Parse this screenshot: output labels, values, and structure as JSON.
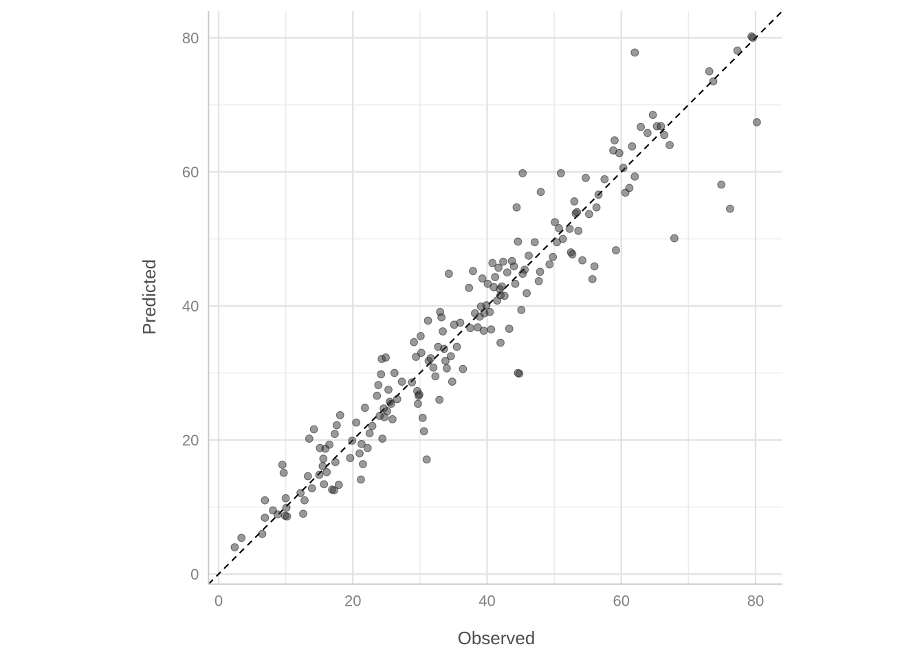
{
  "chart_data": {
    "type": "scatter",
    "title": "",
    "xlabel": "Observed",
    "ylabel": "Predicted",
    "xlim": [
      -1.5,
      84
    ],
    "ylim": [
      -1.5,
      84
    ],
    "x_ticks": [
      0,
      20,
      40,
      60,
      80
    ],
    "y_ticks": [
      0,
      20,
      40,
      60,
      80
    ],
    "x_tick_labels": [
      "0",
      "20",
      "40",
      "60",
      "80"
    ],
    "y_tick_labels": [
      "0",
      "20",
      "40",
      "60",
      "80"
    ],
    "minor_grid": [
      10,
      30,
      50,
      70
    ],
    "grid": true,
    "reference_line": {
      "type": "identity",
      "style": "dashed",
      "color": "#000000"
    },
    "point_color": "#333333",
    "point_opacity": 0.5,
    "x": [
      2.4,
      3.4,
      6.5,
      6.9,
      6.9,
      8.1,
      8.8,
      9.5,
      9.7,
      9.9,
      10.0,
      10.1,
      10.2,
      12.2,
      12.6,
      12.8,
      13.3,
      13.5,
      13.9,
      14.2,
      15.0,
      15.1,
      15.5,
      15.6,
      15.7,
      15.9,
      16.1,
      16.5,
      16.9,
      17.2,
      17.3,
      17.4,
      17.6,
      17.9,
      18.1,
      19.6,
      19.9,
      20.5,
      21.0,
      21.2,
      21.3,
      21.5,
      21.8,
      22.2,
      22.5,
      22.9,
      23.6,
      23.8,
      24.0,
      24.2,
      24.3,
      24.4,
      24.6,
      24.7,
      24.9,
      25.1,
      25.3,
      25.5,
      25.7,
      25.9,
      26.2,
      26.6,
      27.3,
      28.8,
      29.1,
      29.4,
      29.6,
      29.7,
      29.8,
      29.9,
      30.1,
      30.2,
      30.4,
      30.6,
      31.0,
      31.2,
      31.3,
      31.6,
      32.0,
      32.3,
      32.7,
      32.9,
      33.0,
      33.2,
      33.4,
      33.6,
      33.8,
      34.0,
      34.3,
      34.6,
      34.8,
      35.1,
      35.5,
      36.0,
      36.4,
      37.3,
      37.5,
      37.9,
      38.2,
      38.6,
      38.9,
      39.1,
      39.3,
      39.5,
      39.6,
      39.9,
      40.1,
      40.4,
      40.6,
      40.8,
      41.0,
      41.2,
      41.5,
      41.7,
      41.9,
      42.0,
      42.2,
      42.4,
      42.6,
      43.0,
      43.3,
      43.7,
      44.0,
      44.2,
      44.4,
      44.6,
      44.8,
      45.1,
      45.3,
      45.6,
      45.9,
      46.2,
      47.1,
      47.7,
      47.9,
      48.0,
      49.3,
      49.8,
      50.1,
      50.4,
      50.7,
      51.0,
      51.3,
      52.3,
      52.5,
      52.7,
      53.0,
      53.2,
      53.4,
      53.6,
      54.2,
      54.7,
      55.2,
      55.7,
      56.0,
      56.3,
      56.6,
      57.5,
      58.8,
      59.0,
      59.2,
      59.7,
      60.3,
      60.6,
      61.2,
      61.6,
      62.0,
      62.9,
      63.9,
      64.7,
      65.3,
      65.9,
      66.4,
      67.2,
      67.9,
      73.1,
      73.7,
      74.9,
      76.2,
      77.3,
      79.4,
      79.6,
      80.2,
      42.0,
      62.0,
      45.3,
      44.6
    ],
    "y": [
      4.0,
      5.4,
      6.0,
      8.4,
      11.0,
      9.5,
      8.9,
      16.3,
      15.1,
      8.7,
      11.3,
      9.9,
      8.6,
      12.1,
      9.0,
      11.0,
      14.6,
      20.2,
      12.8,
      21.6,
      14.8,
      18.8,
      16.1,
      17.2,
      13.4,
      18.7,
      15.2,
      19.3,
      12.6,
      12.5,
      20.9,
      16.7,
      22.2,
      13.3,
      23.7,
      17.3,
      19.9,
      22.6,
      18.0,
      14.1,
      19.4,
      16.4,
      24.8,
      18.8,
      21.0,
      22.1,
      26.6,
      28.2,
      23.6,
      29.8,
      32.1,
      20.2,
      24.7,
      23.4,
      32.3,
      24.3,
      27.5,
      25.7,
      25.4,
      23.1,
      30.0,
      26.1,
      28.7,
      28.6,
      34.6,
      32.4,
      27.3,
      25.4,
      26.6,
      26.8,
      35.5,
      33.0,
      23.3,
      21.3,
      17.1,
      37.8,
      31.8,
      32.2,
      30.8,
      29.5,
      33.9,
      26.0,
      39.1,
      38.3,
      36.2,
      33.6,
      31.8,
      30.7,
      44.8,
      32.5,
      28.7,
      37.2,
      33.9,
      37.5,
      30.6,
      42.7,
      36.7,
      45.2,
      38.9,
      36.8,
      38.4,
      39.9,
      44.1,
      36.3,
      38.9,
      40.1,
      43.3,
      39.1,
      36.5,
      46.4,
      42.8,
      44.3,
      40.8,
      45.7,
      42.5,
      41.6,
      42.9,
      46.6,
      41.5,
      45.0,
      36.6,
      46.7,
      45.9,
      43.3,
      54.7,
      49.6,
      29.9,
      39.4,
      59.8,
      45.4,
      41.9,
      47.5,
      49.5,
      43.7,
      45.1,
      57.0,
      46.2,
      47.3,
      52.5,
      49.5,
      51.6,
      59.8,
      50.0,
      51.5,
      48.0,
      47.7,
      55.6,
      53.8,
      54.0,
      51.2,
      46.8,
      59.1,
      53.7,
      44.0,
      45.9,
      54.7,
      56.6,
      58.9,
      63.2,
      64.7,
      48.3,
      62.8,
      60.6,
      56.9,
      57.6,
      63.8,
      59.3,
      66.7,
      65.8,
      68.5,
      66.8,
      66.8,
      65.5,
      64.0,
      50.1,
      75.0,
      73.5,
      58.1,
      54.5,
      78.1,
      80.2,
      80.0,
      67.4,
      34.5,
      77.8,
      44.8,
      30.0
    ]
  }
}
